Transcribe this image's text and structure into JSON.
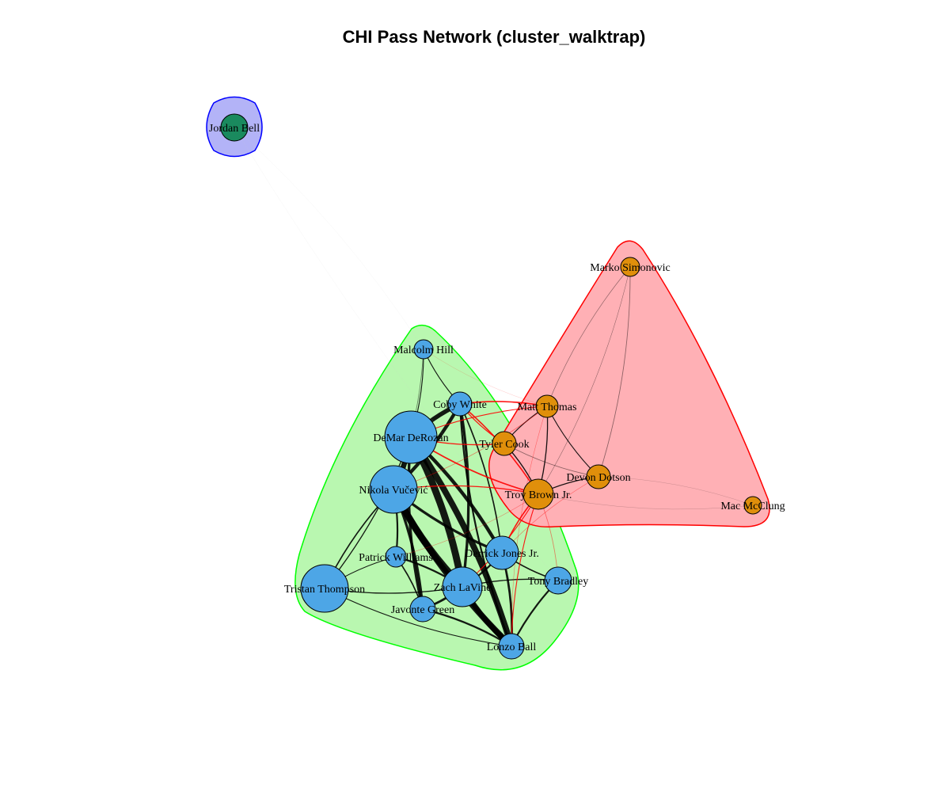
{
  "title": "CHI Pass Network (cluster_walktrap)",
  "clusters": [
    {
      "name": "cluster-1",
      "fill": "#b3b3f7",
      "stroke": "#0000ff",
      "members": [
        "Jordan Bell"
      ]
    },
    {
      "name": "cluster-2",
      "fill": "#b9f7b0",
      "stroke": "#00ff00",
      "members": [
        "Malcolm Hill",
        "Coby White",
        "DeMar DeRozan",
        "Nikola Vučević",
        "Patrick Williams",
        "Derrick Jones Jr.",
        "Tristan Thompson",
        "Zach LaVine",
        "Tony Bradley",
        "Javonte Green",
        "Lonzo Ball"
      ]
    },
    {
      "name": "cluster-3",
      "fill": "#ffb0b5",
      "stroke": "#ff0000",
      "members": [
        "Marko Simonovic",
        "Matt Thomas",
        "Tyler Cook",
        "Devon Dotson",
        "Troy Brown Jr.",
        "Mac McClung"
      ]
    }
  ],
  "node_colors": {
    "cluster-1": "#1a8a5e",
    "cluster-2": "#4da6e6",
    "cluster-3": "#e08f0b"
  },
  "nodes": [
    {
      "id": "Jordan Bell",
      "cluster": 1,
      "weight": 1
    },
    {
      "id": "Malcolm Hill",
      "cluster": 2,
      "weight": 1
    },
    {
      "id": "Coby White",
      "cluster": 2,
      "weight": 1.2
    },
    {
      "id": "DeMar DeRozan",
      "cluster": 2,
      "weight": 4
    },
    {
      "id": "Nikola Vučević",
      "cluster": 2,
      "weight": 3.5
    },
    {
      "id": "Patrick Williams",
      "cluster": 2,
      "weight": 1.1
    },
    {
      "id": "Derrick Jones Jr.",
      "cluster": 2,
      "weight": 2
    },
    {
      "id": "Tristan Thompson",
      "cluster": 2,
      "weight": 3.5
    },
    {
      "id": "Zach LaVine",
      "cluster": 2,
      "weight": 2.8
    },
    {
      "id": "Tony Bradley",
      "cluster": 2,
      "weight": 1.5
    },
    {
      "id": "Javonte Green",
      "cluster": 2,
      "weight": 1.3
    },
    {
      "id": "Lonzo Ball",
      "cluster": 2,
      "weight": 1.4
    },
    {
      "id": "Marko Simonovic",
      "cluster": 3,
      "weight": 0.9
    },
    {
      "id": "Matt Thomas",
      "cluster": 3,
      "weight": 1.1
    },
    {
      "id": "Tyler Cook",
      "cluster": 3,
      "weight": 1.3
    },
    {
      "id": "Devon Dotson",
      "cluster": 3,
      "weight": 1.2
    },
    {
      "id": "Troy Brown Jr.",
      "cluster": 3,
      "weight": 1.8
    },
    {
      "id": "Mac McClung",
      "cluster": 3,
      "weight": 0.8
    }
  ],
  "edges": [
    [
      "DeMar DeRozan",
      "Zach LaVine",
      8
    ],
    [
      "Nikola Vučević",
      "Zach LaVine",
      8
    ],
    [
      "DeMar DeRozan",
      "Lonzo Ball",
      7
    ],
    [
      "Nikola Vučević",
      "Lonzo Ball",
      7
    ],
    [
      "DeMar DeRozan",
      "Nikola Vučević",
      6
    ],
    [
      "Zach LaVine",
      "Lonzo Ball",
      6
    ],
    [
      "DeMar DeRozan",
      "Derrick Jones Jr.",
      4
    ],
    [
      "Nikola Vučević",
      "Derrick Jones Jr.",
      3
    ],
    [
      "DeMar DeRozan",
      "Coby White",
      5
    ],
    [
      "Nikola Vučević",
      "Coby White",
      4
    ],
    [
      "Coby White",
      "Zach LaVine",
      3
    ],
    [
      "DeMar DeRozan",
      "Javonte Green",
      3
    ],
    [
      "Nikola Vučević",
      "Javonte Green",
      3
    ],
    [
      "Zach LaVine",
      "Derrick Jones Jr.",
      2
    ],
    [
      "Tristan Thompson",
      "Nikola Vučević",
      1.5
    ],
    [
      "Tristan Thompson",
      "Zach LaVine",
      1.2
    ],
    [
      "Tristan Thompson",
      "Patrick Williams",
      1
    ],
    [
      "Tristan Thompson",
      "Lonzo Ball",
      1
    ],
    [
      "Patrick Williams",
      "Zach LaVine",
      2
    ],
    [
      "Patrick Williams",
      "Nikola Vučević",
      2
    ],
    [
      "Patrick Williams",
      "Javonte Green",
      1.5
    ],
    [
      "Tony Bradley",
      "Lonzo Ball",
      2
    ],
    [
      "Tony Bradley",
      "Derrick Jones Jr.",
      1.5
    ],
    [
      "Tony Bradley",
      "Zach LaVine",
      1.2
    ],
    [
      "Javonte Green",
      "Lonzo Ball",
      2
    ],
    [
      "Javonte Green",
      "Zach LaVine",
      2.5
    ],
    [
      "Malcolm Hill",
      "DeMar DeRozan",
      1
    ],
    [
      "Malcolm Hill",
      "Coby White",
      1
    ],
    [
      "Malcolm Hill",
      "Nikola Vučević",
      0.8
    ],
    [
      "Coby White",
      "Lonzo Ball",
      2
    ],
    [
      "Derrick Jones Jr.",
      "Lonzo Ball",
      2.5
    ],
    [
      "Tristan Thompson",
      "DeMar DeRozan",
      1.2
    ],
    [
      "Coby White",
      "Derrick Jones Jr.",
      1.5
    ],
    [
      "Matt Thomas",
      "Devon Dotson",
      1
    ],
    [
      "Matt Thomas",
      "Troy Brown Jr.",
      1.2
    ],
    [
      "Matt Thomas",
      "Tyler Cook",
      1
    ],
    [
      "Tyler Cook",
      "Troy Brown Jr.",
      1.2
    ],
    [
      "Devon Dotson",
      "Troy Brown Jr.",
      1.2
    ],
    [
      "Marko Simonovic",
      "Devon Dotson",
      0.8
    ],
    [
      "Marko Simonovic",
      "Matt Thomas",
      0.6
    ],
    [
      "Marko Simonovic",
      "Troy Brown Jr.",
      0.5
    ],
    [
      "Troy Brown Jr.",
      "Mac McClung",
      0.4
    ],
    [
      "Devon Dotson",
      "Mac McClung",
      0.3
    ],
    [
      "Tyler Cook",
      "Devon Dotson",
      0.8
    ],
    [
      "Coby White",
      "Matt Thomas",
      1.5
    ],
    [
      "Coby White",
      "Tyler Cook",
      1.2
    ],
    [
      "Coby White",
      "Troy Brown Jr.",
      1.5
    ],
    [
      "DeMar DeRozan",
      "Troy Brown Jr.",
      1.5
    ],
    [
      "DeMar DeRozan",
      "Matt Thomas",
      1
    ],
    [
      "DeMar DeRozan",
      "Tyler Cook",
      1.2
    ],
    [
      "Nikola Vučević",
      "Troy Brown Jr.",
      1.2
    ],
    [
      "Nikola Vučević",
      "Matt Thomas",
      0.8
    ],
    [
      "Derrick Jones Jr.",
      "Troy Brown Jr.",
      1.5
    ],
    [
      "Zach LaVine",
      "Troy Brown Jr.",
      1
    ],
    [
      "Lonzo Ball",
      "Troy Brown Jr.",
      1
    ],
    [
      "Tony Bradley",
      "Troy Brown Jr.",
      0.8
    ],
    [
      "Derrick Jones Jr.",
      "Devon Dotson",
      0.6
    ],
    [
      "Malcolm Hill",
      "Matt Thomas",
      0.4
    ],
    [
      "Lonzo Ball",
      "Matt Thomas",
      0.5
    ],
    [
      "Patrick Williams",
      "Troy Brown Jr.",
      0.5
    ],
    [
      "Jordan Bell",
      "Malcolm Hill",
      0.1
    ],
    [
      "Jordan Bell",
      "Tony Bradley",
      0.1
    ]
  ]
}
